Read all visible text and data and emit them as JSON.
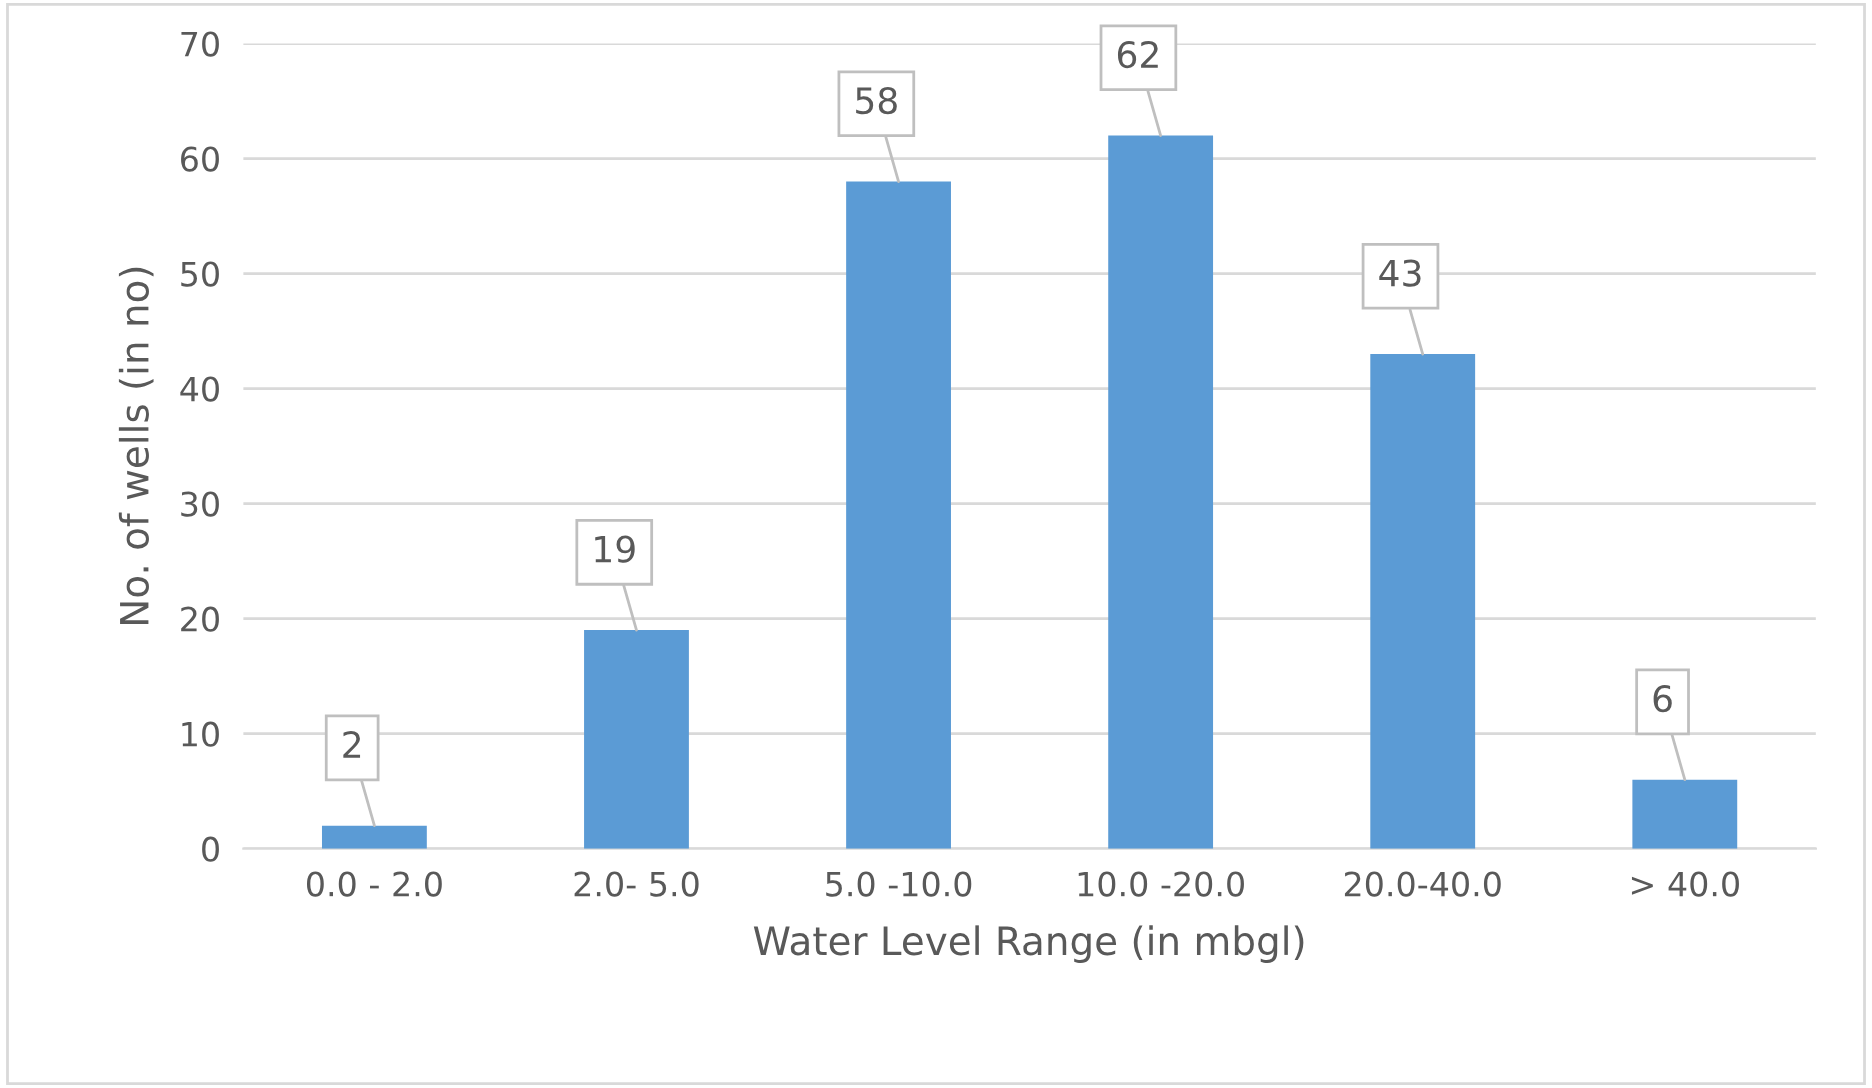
{
  "chart_data": {
    "type": "bar",
    "xlabel": "Water Level Range (in mbgl)",
    "ylabel": "No. of wells (in no)",
    "categories": [
      "0.0 - 2.0",
      "2.0- 5.0",
      "5.0 -10.0",
      "10.0 -20.0",
      "20.0-40.0",
      "> 40.0"
    ],
    "values": [
      2,
      19,
      58,
      62,
      43,
      6
    ],
    "color": "#5b9bd5",
    "ylim": [
      0,
      70
    ],
    "yticks": [
      0,
      10,
      20,
      30,
      40,
      50,
      60,
      70
    ],
    "grid": "y",
    "data_labels": true
  }
}
